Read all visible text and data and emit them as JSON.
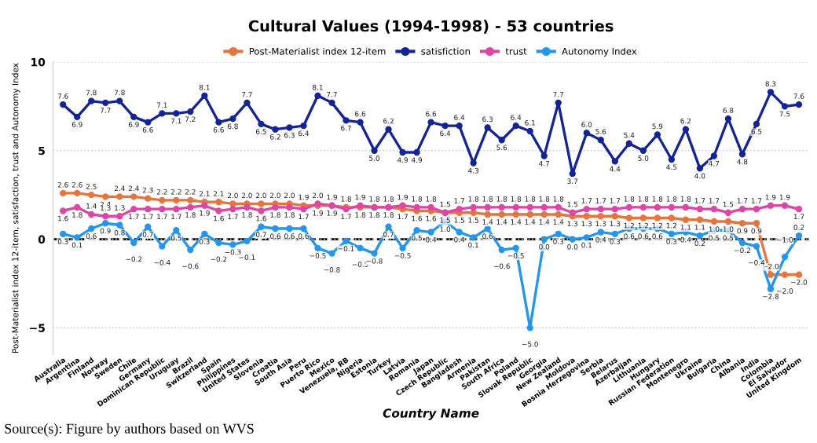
{
  "chart_data": {
    "type": "line",
    "title": "Cultural Values (1994-1998) - 53 countries",
    "xlabel": "Country Name",
    "ylabel": "Post-Materialist index 12-item, satisfaction, trust and Autonomy Index",
    "categories": [
      "Australia",
      "Argentina",
      "Finland",
      "Norway",
      "Sweden",
      "Chile",
      "Germany",
      "Dominican Republic",
      "Uruguay",
      "Brazil",
      "Switzerland",
      "Spain",
      "Philippines",
      "United States",
      "Slovenia",
      "Croatia",
      "South Asia",
      "Peru",
      "Puerto Rico",
      "Mexico",
      "Venezuela, RB",
      "Nigeria",
      "Estonia",
      "Turkey",
      "Latvia",
      "Romania",
      "Japan",
      "Czech Republic",
      "Bangladesh",
      "Armenia",
      "Pakistan",
      "South Africa",
      "Poland",
      "Slovak Republic",
      "Georgia",
      "New Zealand",
      "Moldova",
      "Bosnia Herzegovina",
      "Serbia",
      "Belarus",
      "Azerbaijan",
      "Lithuania",
      "Hungary",
      "Russian Federation",
      "Montenegro",
      "Ukraine",
      "Bulgaria",
      "China",
      "Albania",
      "India",
      "Colombia",
      "El Salvador",
      "United Kingdom"
    ],
    "series": [
      {
        "name": "Post-Materialist index 12-item",
        "color": "#e8743b",
        "values": [
          2.6,
          2.6,
          2.5,
          2.4,
          2.4,
          2.4,
          2.3,
          2.2,
          2.2,
          2.2,
          2.1,
          2.1,
          2.0,
          2.0,
          2.0,
          2.0,
          2.0,
          1.9,
          1.9,
          1.9,
          1.8,
          1.8,
          1.8,
          1.8,
          1.7,
          1.6,
          1.6,
          1.5,
          1.5,
          1.5,
          1.4,
          1.4,
          1.4,
          1.4,
          1.4,
          1.4,
          1.3,
          1.3,
          1.3,
          1.3,
          1.2,
          1.2,
          1.2,
          1.2,
          1.1,
          1.1,
          1.0,
          1.0,
          0.9,
          0.9,
          -2.0,
          -2.0,
          -2.0
        ],
        "value_labels": [
          "2.6",
          "2.6",
          "2.5",
          "2.4",
          "2.4",
          "2.4",
          "2.3",
          "2.2",
          "2.2",
          "2.2",
          "2.1",
          "2.1",
          "2.0",
          "2.0",
          "2.0",
          "2.0",
          "2.0",
          "1.9",
          "1.9",
          "1.9",
          "1.8",
          "1.8",
          "1.8",
          "1.8",
          "1.7",
          "1.6",
          "1.6",
          "1.5",
          "1.5",
          "1.5",
          "1.4",
          "1.4",
          "1.4",
          "1.4",
          "1.4",
          "1.4",
          "1.3",
          "1.3",
          "1.3",
          "1.3",
          "1.2",
          "1.2",
          "1.2",
          "1.2",
          "1.1",
          "1.1",
          "1.0",
          "1.0",
          "0.9",
          "0.9",
          "−2.0",
          "−2.0",
          "−2.0"
        ]
      },
      {
        "name": "satisfiction",
        "color": "#12239e",
        "values": [
          7.6,
          6.9,
          7.8,
          7.7,
          7.8,
          6.9,
          6.6,
          7.1,
          7.1,
          7.2,
          8.1,
          6.6,
          6.8,
          7.7,
          6.5,
          6.2,
          6.3,
          6.4,
          8.1,
          7.7,
          6.7,
          6.6,
          5.0,
          6.2,
          4.9,
          4.9,
          6.6,
          6.4,
          6.4,
          4.3,
          6.3,
          5.6,
          6.4,
          6.1,
          4.7,
          7.7,
          3.7,
          6.0,
          5.6,
          4.4,
          5.4,
          5.0,
          5.9,
          4.5,
          6.2,
          4.0,
          4.7,
          6.8,
          4.8,
          6.5,
          8.3,
          7.5,
          7.6
        ],
        "value_labels": [
          "7.6",
          "6.9",
          "7.8",
          "7.7",
          "7.8",
          "6.9",
          "6.6",
          "7.1",
          "7.1",
          "7.2",
          "8.1",
          "6.6",
          "6.8",
          "7.7",
          "6.5",
          "6.2",
          "6.3",
          "6.4",
          "8.1",
          "7.7",
          "6.7",
          "6.6",
          "5.0",
          "6.2",
          "4.9",
          "4.9",
          "6.6",
          "6.4",
          "6.4",
          "4.3",
          "6.3",
          "5.6",
          "6.4",
          "6.1",
          "4.7",
          "7.7",
          "3.7",
          "6.0",
          "5.6",
          "4.4",
          "5.4",
          "5.0",
          "5.9",
          "4.5",
          "6.2",
          "4.0",
          "4.7",
          "6.8",
          "4.8",
          "6.5",
          "8.3",
          "7.5",
          "7.6"
        ]
      },
      {
        "name": "trust",
        "color": "#e044a7",
        "values": [
          1.6,
          1.8,
          1.4,
          1.3,
          1.3,
          1.7,
          1.7,
          1.7,
          1.7,
          1.8,
          1.9,
          1.6,
          1.7,
          1.8,
          1.6,
          1.8,
          1.8,
          1.7,
          2.0,
          1.9,
          1.7,
          1.9,
          1.8,
          1.8,
          1.9,
          1.8,
          1.8,
          1.5,
          1.7,
          1.8,
          1.8,
          1.8,
          1.8,
          1.8,
          1.8,
          1.8,
          1.5,
          1.7,
          1.7,
          1.7,
          1.8,
          1.8,
          1.8,
          1.8,
          1.8,
          1.7,
          1.7,
          1.5,
          1.7,
          1.7,
          1.9,
          1.9,
          1.7
        ],
        "value_labels": [
          "1.6",
          "1.8",
          "1.4",
          "1.3",
          "1.3",
          "1.7",
          "1.7",
          "1.7",
          "1.7",
          "1.8",
          "1.9",
          "1.6",
          "1.7",
          "1.8",
          "1.6",
          "1.8",
          "1.8",
          "1.7",
          "2.0",
          "1.9",
          "1.7",
          "1.9",
          "1.8",
          "1.8",
          "1.9",
          "1.8",
          "1.8",
          "1.5",
          "1.7",
          "1.8",
          "1.8",
          "1.8",
          "1.8",
          "1.8",
          "1.8",
          "1.8",
          "1.5",
          "1.7",
          "1.7",
          "1.7",
          "1.8",
          "1.8",
          "1.8",
          "1.8",
          "1.8",
          "1.7",
          "1.7",
          "1.5",
          "1.7",
          "1.7",
          "1.9",
          "1.9",
          "1.7"
        ]
      },
      {
        "name": "Autonomy Index",
        "color": "#2196f3",
        "values": [
          0.3,
          0.1,
          0.6,
          0.9,
          0.8,
          -0.2,
          0.7,
          -0.4,
          0.5,
          -0.6,
          0.3,
          -0.2,
          -0.3,
          -0.1,
          0.7,
          0.6,
          0.6,
          0.6,
          -0.5,
          -0.8,
          -0.1,
          -0.5,
          -0.8,
          0.7,
          -0.5,
          0.5,
          0.4,
          1.0,
          0.4,
          0.1,
          0.6,
          -0.6,
          -0.5,
          -5.0,
          0.0,
          0.3,
          0.0,
          0.1,
          0.4,
          0.3,
          0.6,
          0.6,
          0.6,
          0.3,
          0.4,
          0.2,
          0.5,
          0.5,
          -0.2,
          -0.4,
          -2.8,
          -1.0,
          0.2
        ],
        "value_labels": [
          "0.3",
          "0.1",
          "0.6",
          "0.9",
          "0.8",
          "−0.2",
          "0.7",
          "−0.4",
          "0.5",
          "−0.6",
          "0.3",
          "−0.2",
          "−0.3",
          "−0.1",
          "0.7",
          "0.6",
          "0.6",
          "0.6",
          "−0.5",
          "−0.8",
          "−0.1",
          "−0.5",
          "−0.8",
          "0.7",
          "−0.5",
          "0.5",
          "0.4",
          "1.0",
          "0.4",
          "0.1",
          "0.6",
          "−0.6",
          "−0.5",
          "−5.0",
          "0.0",
          "0.3",
          "0.0",
          "0.1",
          "0.4",
          "0.3",
          "0.6",
          "0.6",
          "0.6",
          "0.3",
          "0.4",
          "0.2",
          "0.5",
          "0.5",
          "−0.2",
          "−0.4",
          "−2.8",
          "−1.0",
          "0.2"
        ]
      }
    ],
    "ylim": [
      -6.5,
      10
    ],
    "yticks": [
      -5,
      0,
      5,
      10
    ],
    "grid": "y",
    "legend": "top",
    "marker": "circle",
    "line_style": "solid",
    "ref_lines": [
      {
        "axis": "y",
        "value": 0,
        "color": "#000000",
        "line_style": "dashed"
      }
    ],
    "annotations": [
      "Source(s): Figure by authors based on WVS"
    ]
  }
}
